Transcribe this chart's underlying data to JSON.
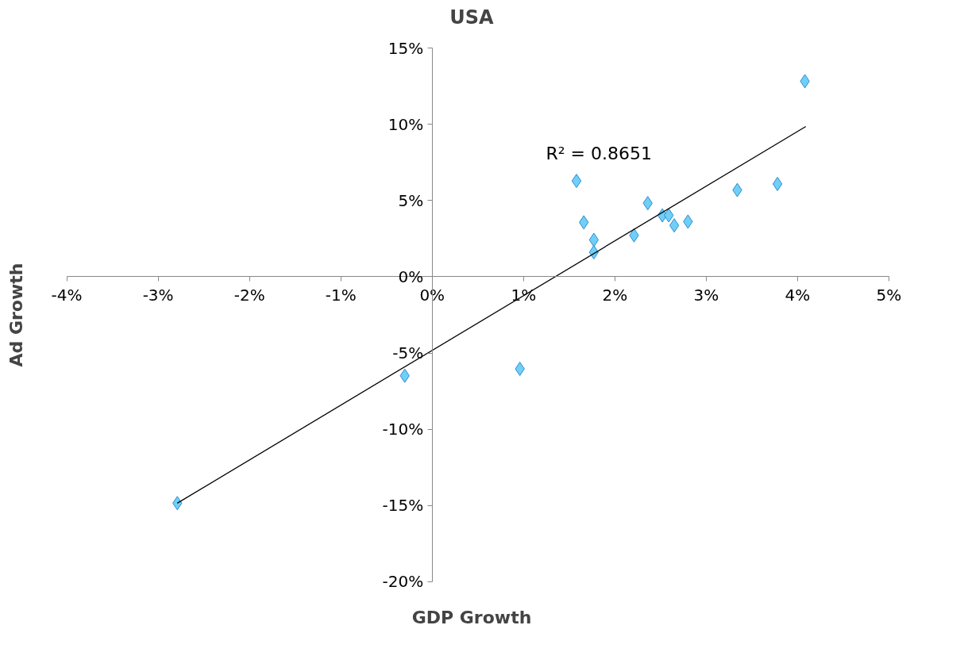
{
  "chart_data": {
    "type": "scatter",
    "title": "USA",
    "xlabel": "GDP Growth",
    "ylabel": "Ad Growth",
    "xlim": [
      -4,
      5
    ],
    "ylim": [
      -20,
      15
    ],
    "xticks": [
      {
        "value": -4,
        "label": "-4%"
      },
      {
        "value": -3,
        "label": "-3%"
      },
      {
        "value": -2,
        "label": "-2%"
      },
      {
        "value": -1,
        "label": "-1%"
      },
      {
        "value": 0,
        "label": "0%"
      },
      {
        "value": 1,
        "label": "1%"
      },
      {
        "value": 2,
        "label": "2%"
      },
      {
        "value": 3,
        "label": "3%"
      },
      {
        "value": 4,
        "label": "4%"
      },
      {
        "value": 5,
        "label": "5%"
      }
    ],
    "yticks": [
      {
        "value": -20,
        "label": "-20%"
      },
      {
        "value": -15,
        "label": "-15%"
      },
      {
        "value": -10,
        "label": "-10%"
      },
      {
        "value": -5,
        "label": "-5%"
      },
      {
        "value": 0,
        "label": "0%"
      },
      {
        "value": 5,
        "label": "5%"
      },
      {
        "value": 10,
        "label": "10%"
      },
      {
        "value": 15,
        "label": "15%"
      }
    ],
    "grid": false,
    "series": [
      {
        "marker": "diamond",
        "color": "#6fcff7",
        "x": [
          -2.79,
          -0.3,
          0.96,
          1.58,
          1.66,
          1.77,
          1.77,
          2.21,
          2.36,
          2.52,
          2.59,
          2.65,
          2.8,
          3.34,
          3.78,
          4.08
        ],
        "values": [
          -14.85,
          -6.49,
          -6.04,
          6.29,
          3.57,
          2.42,
          1.61,
          2.72,
          4.83,
          4.03,
          4.03,
          3.37,
          3.62,
          5.69,
          6.09,
          12.83
        ]
      },
      {
        "type": "line",
        "color": "#000000",
        "x": [
          -2.79,
          4.09
        ],
        "values": [
          -14.85,
          9.86
        ]
      }
    ],
    "annotations": [
      "R² = 0.8651"
    ]
  }
}
